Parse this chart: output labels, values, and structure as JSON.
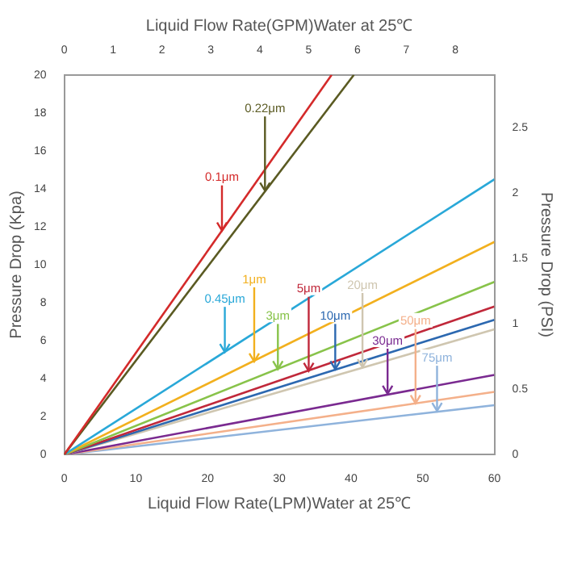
{
  "chart_data": {
    "type": "line",
    "xlabel": "Liquid Flow Rate(LPM)Water at 25℃",
    "x2label": "Liquid Flow Rate(GPM)Water at 25℃",
    "ylabel": "Pressure Drop (Kpa)",
    "y2label": "Pressure Drop (PSI)",
    "xlim": [
      0,
      60
    ],
    "xticks": [
      0,
      10,
      20,
      30,
      40,
      50,
      60
    ],
    "x2lim": [
      0,
      8.8
    ],
    "x2ticks": [
      0,
      1,
      2,
      3,
      4,
      5,
      6,
      7,
      8
    ],
    "ylim": [
      0,
      20
    ],
    "yticks": [
      0,
      2,
      4,
      6,
      8,
      10,
      12,
      14,
      16,
      18,
      20
    ],
    "y2lim": [
      0,
      2.9
    ],
    "y2ticks": [
      0,
      0.5,
      1,
      1.5,
      2,
      2.5
    ],
    "grid": false,
    "legend": false,
    "marker": "none",
    "line_style": "solid",
    "series": [
      {
        "color": "#d42a2a",
        "x": [
          0,
          37.3
        ],
        "values": [
          0,
          20
        ]
      },
      {
        "color": "#5a5a22",
        "x": [
          0,
          40.4
        ],
        "values": [
          0,
          20
        ]
      },
      {
        "color": "#29a8d8",
        "x": [
          0,
          60
        ],
        "values": [
          0,
          14.5
        ]
      },
      {
        "color": "#f2b01e",
        "x": [
          0,
          60
        ],
        "values": [
          0,
          11.2
        ]
      },
      {
        "color": "#88c34a",
        "x": [
          0,
          60
        ],
        "values": [
          0,
          9.1
        ]
      },
      {
        "color": "#c0283a",
        "x": [
          0,
          60
        ],
        "values": [
          0,
          7.8
        ]
      },
      {
        "color": "#2c68b0",
        "x": [
          0,
          60
        ],
        "values": [
          0,
          7.1
        ]
      },
      {
        "color": "#cfc6b0",
        "x": [
          0,
          60
        ],
        "values": [
          0,
          6.6
        ]
      },
      {
        "color": "#7a2a90",
        "x": [
          0,
          60
        ],
        "values": [
          0,
          4.2
        ]
      },
      {
        "color": "#f4b08a",
        "x": [
          0,
          60
        ],
        "values": [
          0,
          3.3
        ]
      },
      {
        "color": "#8fb3dc",
        "x": [
          0,
          60
        ],
        "values": [
          0,
          2.6
        ]
      }
    ],
    "annotations": [
      {
        "text": "0.1μm",
        "x": 22,
        "y": 11.8
      },
      {
        "text": "0.22μm",
        "x": 28,
        "y": 13.9
      },
      {
        "text": "0.45μm",
        "x": 22.4,
        "y": 5.4
      },
      {
        "text": "1μm",
        "x": 26.5,
        "y": 4.9
      },
      {
        "text": "3μm",
        "x": 29.8,
        "y": 4.5
      },
      {
        "text": "5μm",
        "x": 34.1,
        "y": 4.4
      },
      {
        "text": "10μm",
        "x": 37.8,
        "y": 4.5
      },
      {
        "text": "20μm",
        "x": 41.6,
        "y": 4.6
      },
      {
        "text": "30μm",
        "x": 45.1,
        "y": 3.2
      },
      {
        "text": "50μm",
        "x": 49,
        "y": 2.7
      },
      {
        "text": "75μm",
        "x": 52,
        "y": 2.3
      }
    ]
  }
}
